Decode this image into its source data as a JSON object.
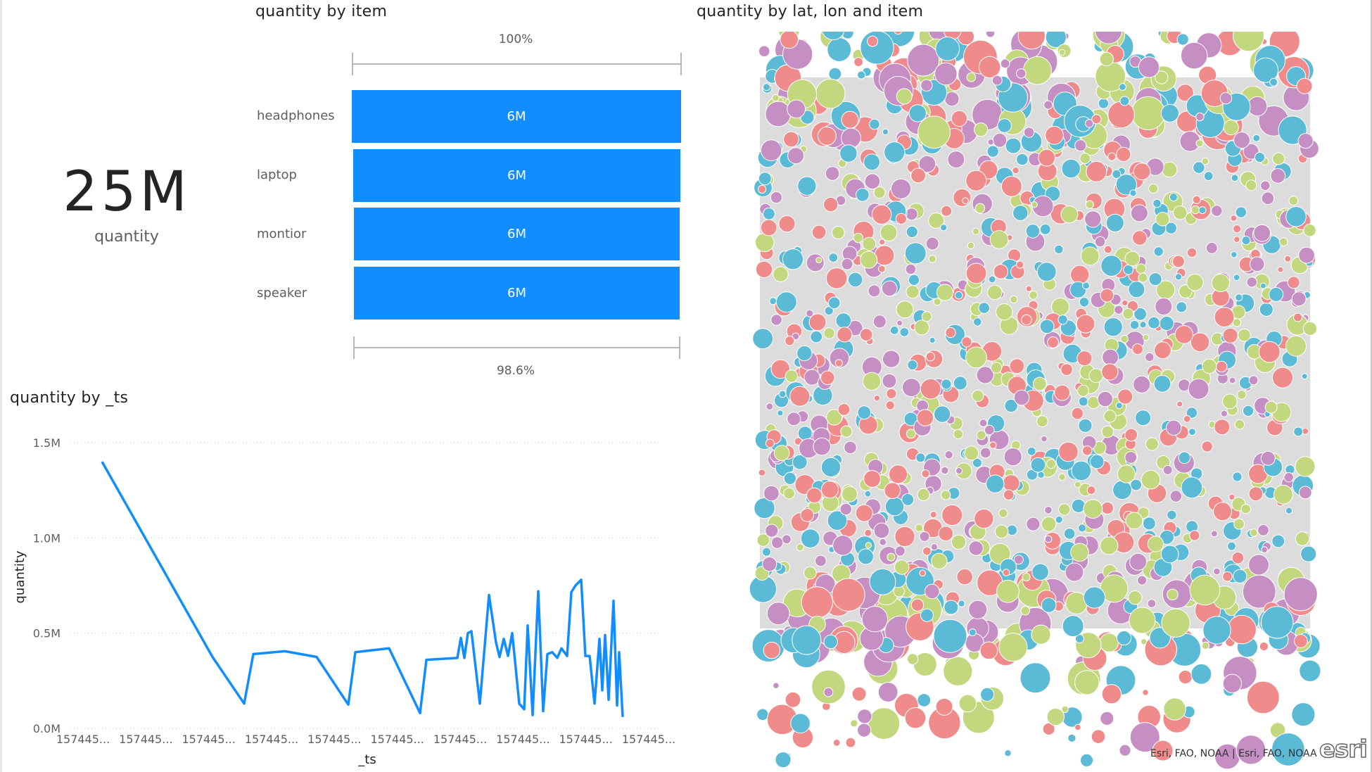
{
  "card": {
    "value": "25M",
    "label": "quantity"
  },
  "funnel": {
    "title": "quantity by item",
    "top_pct": "100%",
    "bottom_pct": "98.6%",
    "bar_color": "#118dff",
    "items": [
      {
        "label": "headphones",
        "value_label": "6M",
        "fraction": 1.0
      },
      {
        "label": "laptop",
        "value_label": "6M",
        "fraction": 0.995
      },
      {
        "label": "montior",
        "value_label": "6M",
        "fraction": 0.99
      },
      {
        "label": "speaker",
        "value_label": "6M",
        "fraction": 0.986
      }
    ]
  },
  "line": {
    "title": "quantity by _ts",
    "color": "#118dff",
    "chart_data": {
      "type": "line",
      "xlabel": "_ts",
      "ylabel": "quantity",
      "ylim": [
        0,
        1500000
      ],
      "yticks": [
        "0.0M",
        "0.5M",
        "1.0M",
        "1.5M"
      ],
      "xticks": [
        "157445...",
        "157445...",
        "157445...",
        "157445...",
        "157445...",
        "157445...",
        "157445...",
        "157445...",
        "157445...",
        "157445..."
      ],
      "grid": true,
      "series": [
        {
          "values": [
            1400000,
            375000,
            130000,
            390000,
            405000,
            375000,
            125000,
            400000,
            420000,
            80000,
            360000,
            370000,
            475000,
            370000,
            500000,
            510000,
            130000,
            700000,
            450000,
            375000,
            470000,
            380000,
            500000,
            130000,
            100000,
            540000,
            70000,
            720000,
            90000,
            390000,
            400000,
            370000,
            420000,
            380000,
            715000,
            750000,
            780000,
            380000,
            380000,
            130000,
            470000,
            200000,
            490000,
            150000,
            670000,
            120000,
            400000,
            60000
          ]
        }
      ]
    }
  },
  "map": {
    "title": "quantity by lat, lon and item",
    "attribution": "Esri, FAO, NOAA | Esri, FAO, NOAA",
    "logo_text": "esri",
    "bubble_colors": [
      "#5bbad5",
      "#f08b8b",
      "#c3d77e",
      "#c58fc4"
    ]
  }
}
